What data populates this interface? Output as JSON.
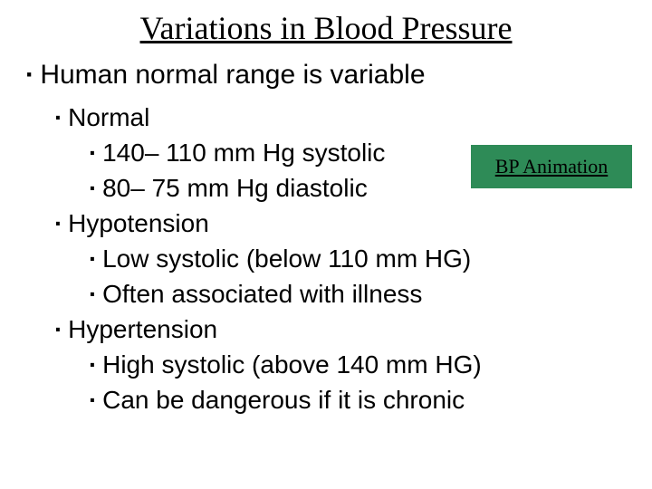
{
  "title": "Variations in Blood Pressure",
  "bp_box": {
    "label": "BP Animation",
    "bg": "#2e8b57"
  },
  "items": [
    {
      "level": 1,
      "text": "Human normal range is variable"
    },
    {
      "level": 2,
      "text": "Normal"
    },
    {
      "level": 3,
      "text": "140– 110 mm Hg systolic"
    },
    {
      "level": 3,
      "text": "80– 75 mm Hg diastolic"
    },
    {
      "level": 2,
      "text": "Hypotension"
    },
    {
      "level": 3,
      "text": "Low systolic (below 110 mm HG)"
    },
    {
      "level": 3,
      "text": "Often associated with illness"
    },
    {
      "level": 2,
      "text": "Hypertension"
    },
    {
      "level": 3,
      "text": "High systolic (above 140 mm HG)"
    },
    {
      "level": 3,
      "text": "Can be dangerous if it is chronic"
    }
  ]
}
